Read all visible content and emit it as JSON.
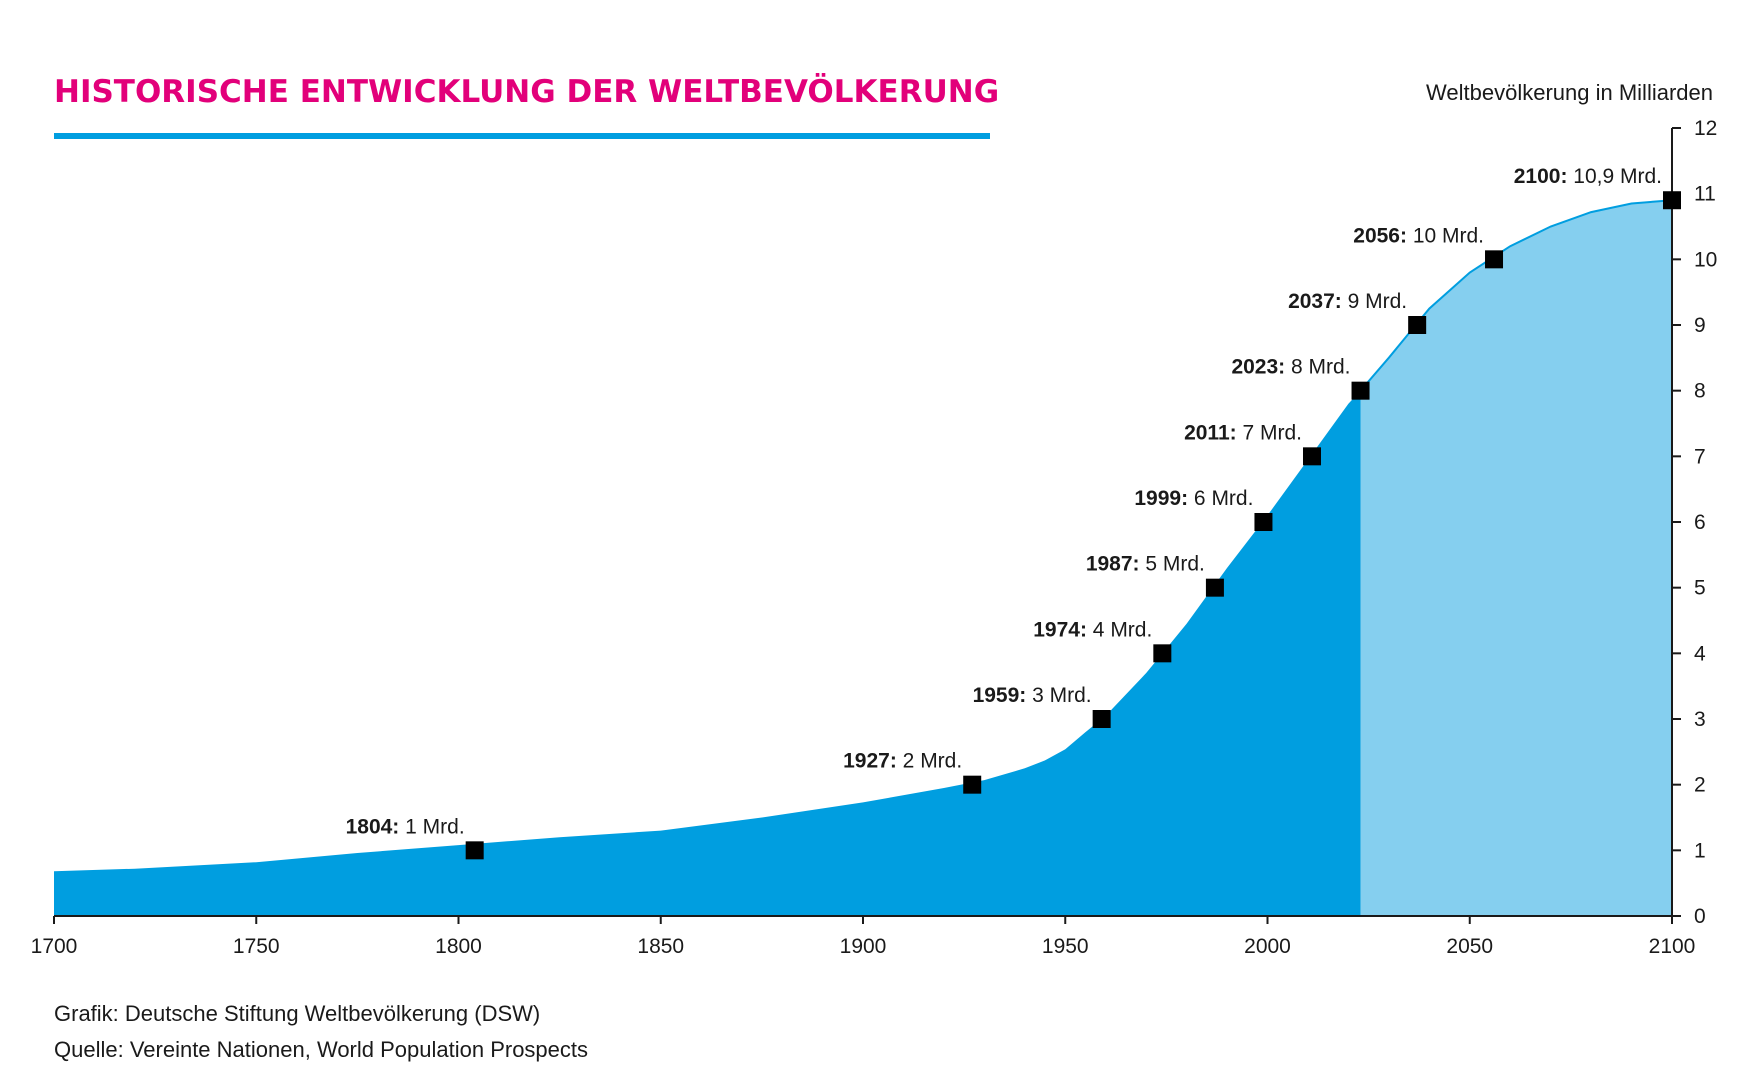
{
  "chart_data": {
    "type": "area",
    "title": "HISTORISCHE ENTWICKLUNG DER WELTBEVÖLKERUNG",
    "ylabel": "Weltbevölkerung in Milliarden",
    "xlim": [
      1700,
      2100
    ],
    "ylim": [
      0,
      12
    ],
    "x_ticks": [
      1700,
      1750,
      1800,
      1850,
      1900,
      1950,
      2000,
      2050,
      2100
    ],
    "y_ticks": [
      0,
      1,
      2,
      3,
      4,
      5,
      6,
      7,
      8,
      9,
      10,
      11,
      12
    ],
    "series": [
      {
        "x": [
          1700,
          1720,
          1750,
          1775,
          1800,
          1825,
          1850,
          1875,
          1900,
          1920,
          1930,
          1940,
          1945,
          1950,
          1955,
          1960,
          1970,
          1980,
          1990,
          2000,
          2010,
          2020,
          2023,
          2030,
          2040,
          2050,
          2060,
          2070,
          2080,
          2090,
          2100
        ],
        "y": [
          0.68,
          0.72,
          0.82,
          0.96,
          1.08,
          1.2,
          1.3,
          1.5,
          1.73,
          1.95,
          2.07,
          2.25,
          2.37,
          2.54,
          2.8,
          3.05,
          3.7,
          4.45,
          5.3,
          6.1,
          6.95,
          7.8,
          8.0,
          8.5,
          9.25,
          9.8,
          10.2,
          10.5,
          10.72,
          10.85,
          10.9
        ]
      }
    ],
    "projection_start": 2023,
    "colors": {
      "historical": "#009ee0",
      "projection": "#85cfef",
      "marker": "#000000",
      "title": "#e2007a",
      "rule": "#009ee0"
    },
    "milestones": [
      {
        "year": 1804,
        "value": 1,
        "year_label": "1804:",
        "value_label": "1 Mrd."
      },
      {
        "year": 1927,
        "value": 2,
        "year_label": "1927:",
        "value_label": "2 Mrd."
      },
      {
        "year": 1959,
        "value": 3,
        "year_label": "1959:",
        "value_label": "3 Mrd."
      },
      {
        "year": 1974,
        "value": 4,
        "year_label": "1974:",
        "value_label": "4 Mrd."
      },
      {
        "year": 1987,
        "value": 5,
        "year_label": "1987:",
        "value_label": "5 Mrd."
      },
      {
        "year": 1999,
        "value": 6,
        "year_label": "1999:",
        "value_label": "6 Mrd."
      },
      {
        "year": 2011,
        "value": 7,
        "year_label": "2011:",
        "value_label": "7 Mrd."
      },
      {
        "year": 2023,
        "value": 8,
        "year_label": "2023:",
        "value_label": "8 Mrd."
      },
      {
        "year": 2037,
        "value": 9,
        "year_label": "2037:",
        "value_label": "9 Mrd."
      },
      {
        "year": 2056,
        "value": 10,
        "year_label": "2056:",
        "value_label": "10 Mrd."
      },
      {
        "year": 2100,
        "value": 10.9,
        "year_label": "2100:",
        "value_label": "10,9 Mrd."
      }
    ]
  },
  "footer": {
    "credit_line": "Grafik: Deutsche Stiftung Weltbevölkerung (DSW)",
    "source_line": "Quelle: Vereinte Nationen, World Population Prospects"
  }
}
